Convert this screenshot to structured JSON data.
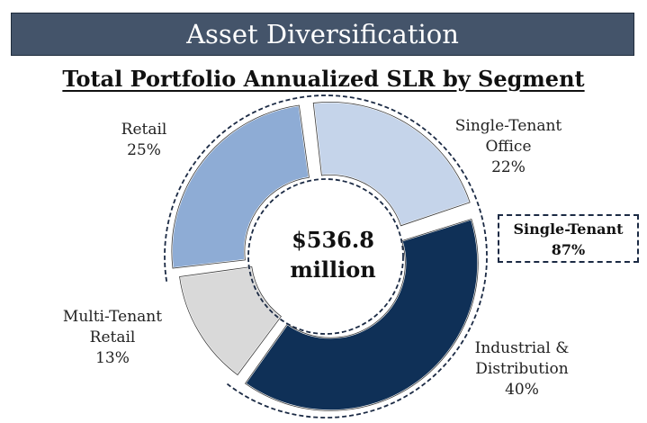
{
  "header": {
    "title": "Asset Diversification"
  },
  "subtitle": "Total Portfolio Annualized SLR by Segment",
  "center": {
    "line1": "$536.8",
    "line2": "million"
  },
  "callout": {
    "line1": "Single-Tenant",
    "line2": "87%"
  },
  "colors": {
    "banner": "#44546a",
    "industrial": "#0f3057",
    "multi_tenant_retail": "#d9d9d9",
    "retail": "#8eacd5",
    "office": "#c5d4ea"
  },
  "chart_data": {
    "type": "pie",
    "variant": "donut",
    "title": "Total Portfolio Annualized SLR by Segment",
    "center_text": "$536.8 million",
    "slices": [
      {
        "name": "Industrial & Distribution",
        "label_lines": [
          "Industrial &",
          "Distribution",
          "40%"
        ],
        "value": 40
      },
      {
        "name": "Multi-Tenant Retail",
        "label_lines": [
          "Multi-Tenant",
          "Retail",
          "13%"
        ],
        "value": 13
      },
      {
        "name": "Retail",
        "label_lines": [
          "Retail",
          "25%"
        ],
        "value": 25
      },
      {
        "name": "Single-Tenant Office",
        "label_lines": [
          "Single-Tenant",
          "Office",
          "22%"
        ],
        "value": 22
      }
    ]
  }
}
